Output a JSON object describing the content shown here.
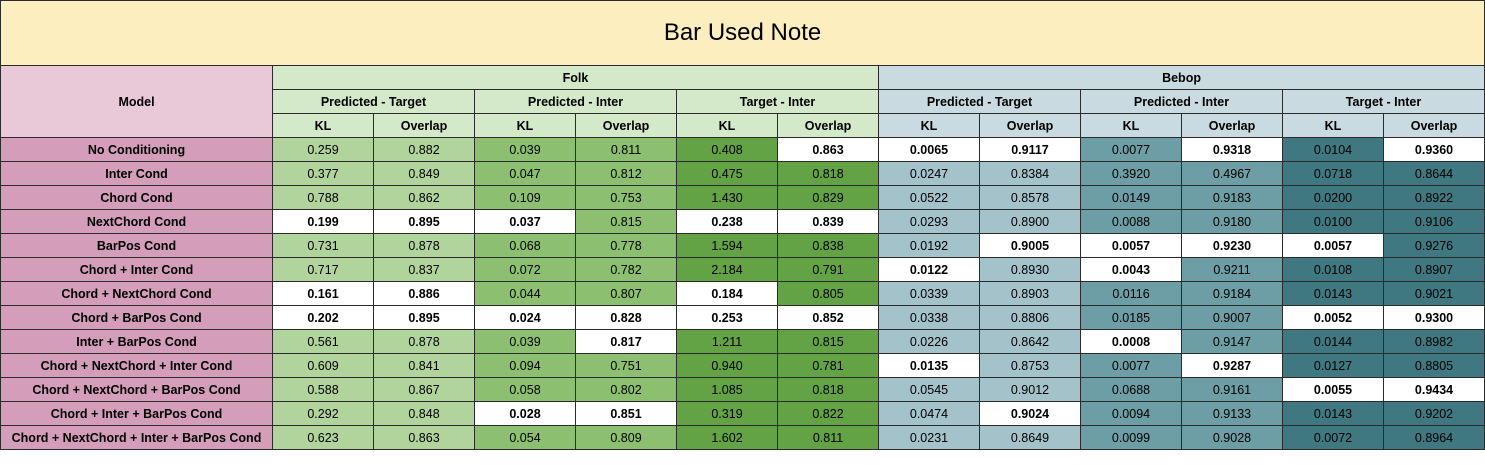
{
  "title": "Bar Used Note",
  "header": {
    "model": "Model",
    "groups": [
      "Folk",
      "Bebop"
    ],
    "pairs": [
      "Predicted - Target",
      "Predicted - Inter",
      "Target - Inter",
      "Predicted - Target",
      "Predicted - Inter",
      "Target - Inter"
    ],
    "metrics": [
      "KL",
      "Overlap",
      "KL",
      "Overlap",
      "KL",
      "Overlap",
      "KL",
      "Overlap",
      "KL",
      "Overlap",
      "KL",
      "Overlap"
    ]
  },
  "colors": {
    "title_bg": "#fdeec0",
    "model_header_bg": "#e9c9d8",
    "model_name_bg": "#d49ebb",
    "folk_header_bg": "#d4e8ca",
    "bebop_header_bg": "#c9dbe0",
    "folk_shades": [
      "#b1d39c",
      "#8cc070",
      "#63a245"
    ],
    "bebop_shades": [
      "#a3c2c9",
      "#6d9ea6",
      "#3f7880"
    ],
    "best_value_bg": "#ffffff"
  },
  "rows": [
    {
      "model": "No Conditioning",
      "values": [
        "0.259",
        "0.882",
        "0.039",
        "0.811",
        "0.408",
        "0.863",
        "0.0065",
        "0.9117",
        "0.0077",
        "0.9318",
        "0.0104",
        "0.9360"
      ],
      "bold": [
        false,
        false,
        false,
        false,
        false,
        true,
        true,
        true,
        false,
        true,
        false,
        true
      ]
    },
    {
      "model": "Inter Cond",
      "values": [
        "0.377",
        "0.849",
        "0.047",
        "0.812",
        "0.475",
        "0.818",
        "0.0247",
        "0.8384",
        "0.3920",
        "0.4967",
        "0.0718",
        "0.8644"
      ],
      "bold": [
        false,
        false,
        false,
        false,
        false,
        false,
        false,
        false,
        false,
        false,
        false,
        false
      ]
    },
    {
      "model": "Chord Cond",
      "values": [
        "0.788",
        "0.862",
        "0.109",
        "0.753",
        "1.430",
        "0.829",
        "0.0522",
        "0.8578",
        "0.0149",
        "0.9183",
        "0.0200",
        "0.8922"
      ],
      "bold": [
        false,
        false,
        false,
        false,
        false,
        false,
        false,
        false,
        false,
        false,
        false,
        false
      ]
    },
    {
      "model": "NextChord Cond",
      "values": [
        "0.199",
        "0.895",
        "0.037",
        "0.815",
        "0.238",
        "0.839",
        "0.0293",
        "0.8900",
        "0.0088",
        "0.9180",
        "0.0100",
        "0.9106"
      ],
      "bold": [
        true,
        true,
        true,
        false,
        true,
        true,
        false,
        false,
        false,
        false,
        false,
        false
      ]
    },
    {
      "model": "BarPos Cond",
      "values": [
        "0.731",
        "0.878",
        "0.068",
        "0.778",
        "1.594",
        "0.838",
        "0.0192",
        "0.9005",
        "0.0057",
        "0.9230",
        "0.0057",
        "0.9276"
      ],
      "bold": [
        false,
        false,
        false,
        false,
        false,
        false,
        false,
        true,
        true,
        true,
        true,
        false
      ]
    },
    {
      "model": "Chord + Inter Cond",
      "values": [
        "0.717",
        "0.837",
        "0.072",
        "0.782",
        "2.184",
        "0.791",
        "0.0122",
        "0.8930",
        "0.0043",
        "0.9211",
        "0.0108",
        "0.8907"
      ],
      "bold": [
        false,
        false,
        false,
        false,
        false,
        false,
        true,
        false,
        true,
        false,
        false,
        false
      ]
    },
    {
      "model": "Chord + NextChord Cond",
      "values": [
        "0.161",
        "0.886",
        "0.044",
        "0.807",
        "0.184",
        "0.805",
        "0.0339",
        "0.8903",
        "0.0116",
        "0.9184",
        "0.0143",
        "0.9021"
      ],
      "bold": [
        true,
        true,
        false,
        false,
        true,
        false,
        false,
        false,
        false,
        false,
        false,
        false
      ]
    },
    {
      "model": "Chord + BarPos Cond",
      "values": [
        "0.202",
        "0.895",
        "0.024",
        "0.828",
        "0.253",
        "0.852",
        "0.0338",
        "0.8806",
        "0.0185",
        "0.9007",
        "0.0052",
        "0.9300"
      ],
      "bold": [
        true,
        true,
        true,
        true,
        true,
        true,
        false,
        false,
        false,
        false,
        true,
        true
      ]
    },
    {
      "model": "Inter + BarPos Cond",
      "values": [
        "0.561",
        "0.878",
        "0.039",
        "0.817",
        "1.211",
        "0.815",
        "0.0226",
        "0.8642",
        "0.0008",
        "0.9147",
        "0.0144",
        "0.8982"
      ],
      "bold": [
        false,
        false,
        false,
        true,
        false,
        false,
        false,
        false,
        true,
        false,
        false,
        false
      ]
    },
    {
      "model": "Chord + NextChord + Inter Cond",
      "values": [
        "0.609",
        "0.841",
        "0.094",
        "0.751",
        "0.940",
        "0.781",
        "0.0135",
        "0.8753",
        "0.0077",
        "0.9287",
        "0.0127",
        "0.8805"
      ],
      "bold": [
        false,
        false,
        false,
        false,
        false,
        false,
        true,
        false,
        false,
        true,
        false,
        false
      ]
    },
    {
      "model": "Chord + NextChord + BarPos Cond",
      "values": [
        "0.588",
        "0.867",
        "0.058",
        "0.802",
        "1.085",
        "0.818",
        "0.0545",
        "0.9012",
        "0.0688",
        "0.9161",
        "0.0055",
        "0.9434"
      ],
      "bold": [
        false,
        false,
        false,
        false,
        false,
        false,
        false,
        false,
        false,
        false,
        true,
        true
      ]
    },
    {
      "model": "Chord + Inter + BarPos Cond",
      "values": [
        "0.292",
        "0.848",
        "0.028",
        "0.851",
        "0.319",
        "0.822",
        "0.0474",
        "0.9024",
        "0.0094",
        "0.9133",
        "0.0143",
        "0.9202"
      ],
      "bold": [
        false,
        false,
        true,
        true,
        false,
        false,
        false,
        true,
        false,
        false,
        false,
        false
      ]
    },
    {
      "model": "Chord + NextChord + Inter + BarPos Cond",
      "values": [
        "0.623",
        "0.863",
        "0.054",
        "0.809",
        "1.602",
        "0.811",
        "0.0231",
        "0.8649",
        "0.0099",
        "0.9028",
        "0.0072",
        "0.8964"
      ],
      "bold": [
        false,
        false,
        false,
        false,
        false,
        false,
        false,
        false,
        false,
        false,
        false,
        false
      ]
    }
  ]
}
